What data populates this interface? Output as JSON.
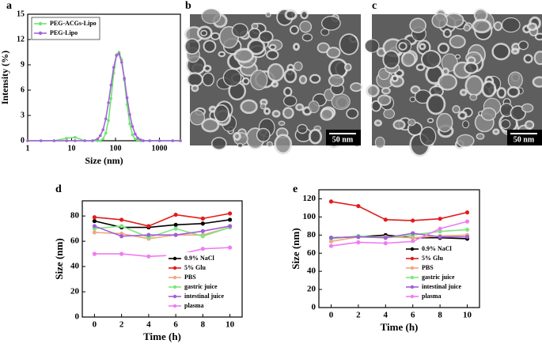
{
  "chart_data": [
    {
      "type": "line",
      "panel_label": "a",
      "x_label": "Size (nm)",
      "y_label": "Intensity (%)",
      "x_scale": "log",
      "x": [
        1,
        2,
        4,
        7.7,
        12,
        20,
        30,
        39,
        45,
        52,
        60,
        69,
        79,
        91,
        105,
        120,
        138,
        159,
        183,
        211,
        243,
        280,
        322,
        371,
        427,
        600,
        1000,
        2000,
        3000
      ],
      "xlim": [
        1,
        3000
      ],
      "xticks": [
        1,
        10,
        100,
        1000
      ],
      "ylim": [
        0,
        15
      ],
      "yticks": [
        0,
        3,
        6,
        9,
        12,
        15
      ],
      "legend": "upper left",
      "series": [
        {
          "name": "PEG-ACGs-Lipo",
          "color": "#6ee66e",
          "values": [
            0,
            0,
            0,
            0.3,
            0.4,
            0,
            0,
            0,
            0,
            0.2,
            0.9,
            2.4,
            5.0,
            8.0,
            10.2,
            10.5,
            9.6,
            7.2,
            4.3,
            2.0,
            0.7,
            0.2,
            0,
            0,
            0,
            0,
            0,
            0,
            0
          ]
        },
        {
          "name": "PEG-Lipo",
          "color": "#a064d6",
          "values": [
            0,
            0,
            0,
            0,
            0,
            0,
            0,
            0.2,
            0.6,
            1.3,
            2.6,
            4.5,
            6.6,
            8.7,
            10.1,
            10.3,
            9.3,
            7.4,
            5.1,
            3.1,
            1.7,
            0.8,
            0.3,
            0.1,
            0,
            0,
            0,
            0,
            0
          ]
        }
      ]
    },
    {
      "type": "line",
      "panel_label": "d",
      "x_label": "Time (h)",
      "y_label": "Size (nm)",
      "x": [
        0,
        2,
        4,
        6,
        8,
        10
      ],
      "xlim": [
        -0.9,
        10.9
      ],
      "xticks": [
        0,
        2,
        4,
        6,
        8,
        10
      ],
      "ylim": [
        0,
        92
      ],
      "yticks": [
        0,
        20,
        40,
        60,
        80
      ],
      "legend": "lower right",
      "series": [
        {
          "name": "0.9% NaCl",
          "color": "#000000",
          "values": [
            76,
            71,
            71,
            73,
            74,
            77
          ]
        },
        {
          "name": "5% Glu",
          "color": "#e41a1c",
          "values": [
            79,
            77,
            72,
            81,
            78,
            82
          ]
        },
        {
          "name": "PBS",
          "color": "#f4a582",
          "values": [
            67,
            66,
            62,
            65,
            65,
            71
          ]
        },
        {
          "name": "gastric juice",
          "color": "#7fe57f",
          "values": [
            70,
            72,
            63,
            70,
            64,
            71
          ]
        },
        {
          "name": "intestinal juice",
          "color": "#a05fd6",
          "values": [
            72,
            64,
            65,
            65,
            68,
            72
          ]
        },
        {
          "name": "plasma",
          "color": "#f07cf0",
          "values": [
            50,
            50,
            48,
            49,
            54,
            55
          ]
        }
      ]
    },
    {
      "type": "line",
      "panel_label": "e",
      "x_label": "Time (h)",
      "y_label": "Size (nm)",
      "x": [
        0,
        2,
        4,
        6,
        8,
        10
      ],
      "xlim": [
        -0.9,
        10.9
      ],
      "xticks": [
        0,
        2,
        4,
        6,
        8,
        10
      ],
      "ylim": [
        0,
        130
      ],
      "yticks": [
        0,
        20,
        40,
        60,
        80,
        100,
        120
      ],
      "legend": "lower right",
      "series": [
        {
          "name": "0.9% NaCl",
          "color": "#000000",
          "values": [
            77,
            78,
            80,
            77,
            77,
            76
          ]
        },
        {
          "name": "5% Glu",
          "color": "#e41a1c",
          "values": [
            117,
            112,
            97,
            96,
            98,
            105
          ]
        },
        {
          "name": "PBS",
          "color": "#f4a582",
          "values": [
            73,
            78,
            78,
            77,
            79,
            80
          ]
        },
        {
          "name": "gastric juice",
          "color": "#7fe57f",
          "values": [
            76,
            79,
            77,
            80,
            84,
            86
          ]
        },
        {
          "name": "intestinal juice",
          "color": "#a05fd6",
          "values": [
            77,
            78,
            77,
            82,
            78,
            78
          ]
        },
        {
          "name": "plasma",
          "color": "#f07cf0",
          "values": [
            68,
            72,
            71,
            73,
            87,
            95
          ]
        }
      ]
    }
  ],
  "images": [
    {
      "panel_label": "b",
      "scale_bar": "50 nm"
    },
    {
      "panel_label": "c",
      "scale_bar": "50 nm"
    }
  ]
}
